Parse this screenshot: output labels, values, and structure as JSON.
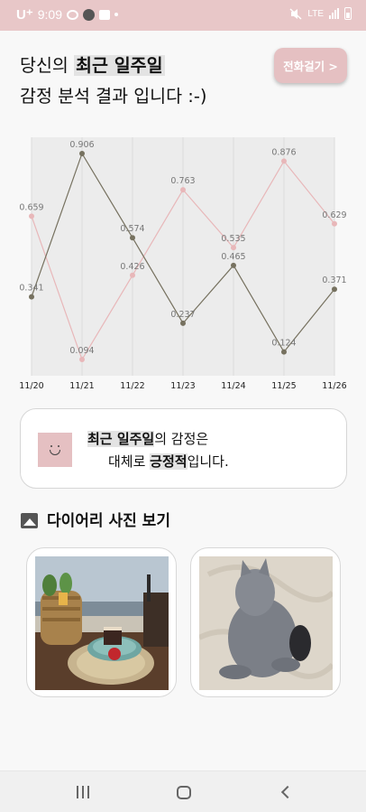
{
  "status_bar": {
    "carrier": "U⁺",
    "time": "9:09",
    "network": "LTE",
    "icons": [
      "chat-bubble-icon",
      "dark-circle-icon",
      "bag-icon",
      "dot-icon",
      "mute-icon",
      "signal-icon",
      "battery-icon"
    ]
  },
  "header": {
    "title_prefix": "당신의 ",
    "title_highlight": "최근 일주일",
    "title_line2": "감정 분석 결과 입니다 :-)",
    "call_button": "전화걸기 >"
  },
  "chart_data": {
    "type": "line",
    "categories": [
      "11/20",
      "11/21",
      "11/22",
      "11/23",
      "11/24",
      "11/25",
      "11/26"
    ],
    "series": [
      {
        "name": "pink",
        "color": "#e8b7b9",
        "values": [
          0.659,
          0.094,
          0.426,
          0.763,
          0.535,
          0.876,
          0.629
        ]
      },
      {
        "name": "gray",
        "color": "#76715f",
        "values": [
          0.341,
          0.906,
          0.574,
          0.237,
          0.465,
          0.124,
          0.371
        ]
      }
    ],
    "ylim": [
      0.03,
      0.97
    ],
    "grid": true,
    "legend": "none"
  },
  "summary": {
    "highlight1": "최근 일주일",
    "text1": "의 감정은",
    "text2_prefix": "대체로 ",
    "highlight2": "긍정적",
    "text2_suffix": "입니다."
  },
  "diary": {
    "title": "다이어리 사진 보기",
    "icon": "image-icon",
    "photos": [
      "beach-table-photo",
      "cat-photo"
    ]
  },
  "navigation": {
    "buttons": [
      "recents-icon",
      "home-icon",
      "back-icon"
    ]
  },
  "colors": {
    "accent": "#e5c0c2",
    "status_bar": "#e8c7c8",
    "positive_line": "#e8b7b9",
    "negative_line": "#76715f"
  }
}
